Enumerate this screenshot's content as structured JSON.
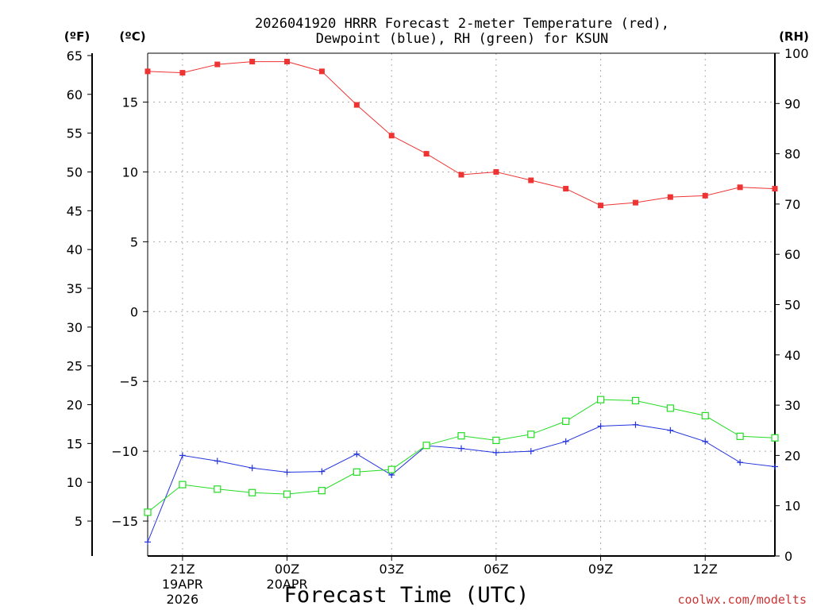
{
  "chart_data": {
    "type": "line",
    "title_line1": "2026041920 HRRR Forecast 2-meter Temperature (red),",
    "title_line2": "Dewpoint (blue), RH (green) for KSUN",
    "xlabel": "Forecast Time (UTC)",
    "unit_labels": {
      "fahrenheit": "(ºF)",
      "celsius": "(ºC)",
      "rh": "(RH)"
    },
    "watermark": "coolwx.com/modelts",
    "x_range": [
      0,
      18
    ],
    "x_ticks": [
      {
        "x": 1,
        "label": "21Z",
        "sub1": "19APR",
        "sub2": "2026"
      },
      {
        "x": 4,
        "label": "00Z",
        "sub1": "20APR",
        "sub2": ""
      },
      {
        "x": 7,
        "label": "03Z",
        "sub1": "",
        "sub2": ""
      },
      {
        "x": 10,
        "label": "06Z",
        "sub1": "",
        "sub2": ""
      },
      {
        "x": 13,
        "label": "09Z",
        "sub1": "",
        "sub2": ""
      },
      {
        "x": 16,
        "label": "12Z",
        "sub1": "",
        "sub2": ""
      }
    ],
    "celsius_range": [
      -17.5,
      18.5
    ],
    "celsius_ticks": [
      {
        "v": 15,
        "label": "15"
      },
      {
        "v": 10,
        "label": "10"
      },
      {
        "v": 5,
        "label": "5"
      },
      {
        "v": 0,
        "label": "0"
      },
      {
        "v": -5,
        "label": "−5"
      },
      {
        "v": -10,
        "label": "−10"
      },
      {
        "v": -15,
        "label": "−15"
      }
    ],
    "fahrenheit_ticks": [
      {
        "v": 65,
        "label": "65"
      },
      {
        "v": 60,
        "label": "60"
      },
      {
        "v": 55,
        "label": "55"
      },
      {
        "v": 50,
        "label": "50"
      },
      {
        "v": 45,
        "label": "45"
      },
      {
        "v": 40,
        "label": "40"
      },
      {
        "v": 35,
        "label": "35"
      },
      {
        "v": 30,
        "label": "30"
      },
      {
        "v": 25,
        "label": "25"
      },
      {
        "v": 20,
        "label": "20"
      },
      {
        "v": 15,
        "label": "15"
      },
      {
        "v": 10,
        "label": "10"
      },
      {
        "v": 5,
        "label": "5"
      }
    ],
    "rh_range": [
      0,
      100
    ],
    "rh_ticks": [
      {
        "v": 100,
        "label": "100"
      },
      {
        "v": 90,
        "label": "90"
      },
      {
        "v": 80,
        "label": "80"
      },
      {
        "v": 70,
        "label": "70"
      },
      {
        "v": 60,
        "label": "60"
      },
      {
        "v": 50,
        "label": "50"
      },
      {
        "v": 40,
        "label": "40"
      },
      {
        "v": 30,
        "label": "30"
      },
      {
        "v": 20,
        "label": "20"
      },
      {
        "v": 10,
        "label": "10"
      },
      {
        "v": 0,
        "label": "0"
      }
    ],
    "grid": true,
    "series": [
      {
        "name": "Temperature",
        "axis": "celsius",
        "color": "#ee3333",
        "marker": "filled-square",
        "x": [
          0,
          1,
          2,
          3,
          4,
          5,
          6,
          7,
          8,
          9,
          10,
          11,
          12,
          13,
          14,
          15,
          16,
          17,
          18
        ],
        "values": [
          17.2,
          17.1,
          17.7,
          17.9,
          17.9,
          17.2,
          14.8,
          12.6,
          11.3,
          9.8,
          10.0,
          9.4,
          8.8,
          7.6,
          7.8,
          8.2,
          8.3,
          8.9,
          8.8
        ]
      },
      {
        "name": "Dewpoint",
        "axis": "celsius",
        "color": "#2233dd",
        "marker": "plus",
        "x": [
          0,
          1,
          2,
          3,
          4,
          5,
          6,
          7,
          8,
          9,
          10,
          11,
          12,
          13,
          14,
          15,
          16,
          17,
          18
        ],
        "values": [
          -16.5,
          -10.3,
          -10.7,
          -11.2,
          -11.5,
          -11.45,
          -10.2,
          -11.7,
          -9.6,
          -9.8,
          -10.1,
          -10.0,
          -9.3,
          -8.2,
          -8.1,
          -8.5,
          -9.3,
          -10.8,
          -11.1
        ]
      },
      {
        "name": "RH",
        "axis": "rh",
        "color": "#22dd22",
        "marker": "open-square",
        "x": [
          0,
          1,
          2,
          3,
          4,
          5,
          6,
          7,
          8,
          9,
          10,
          11,
          12,
          13,
          14,
          15,
          16,
          17,
          18
        ],
        "values": [
          8.7,
          14.2,
          13.3,
          12.6,
          12.3,
          13.0,
          16.7,
          17.2,
          22.0,
          23.9,
          23.0,
          24.2,
          26.8,
          31.1,
          30.9,
          29.4,
          27.9,
          23.8,
          23.5
        ]
      }
    ]
  }
}
